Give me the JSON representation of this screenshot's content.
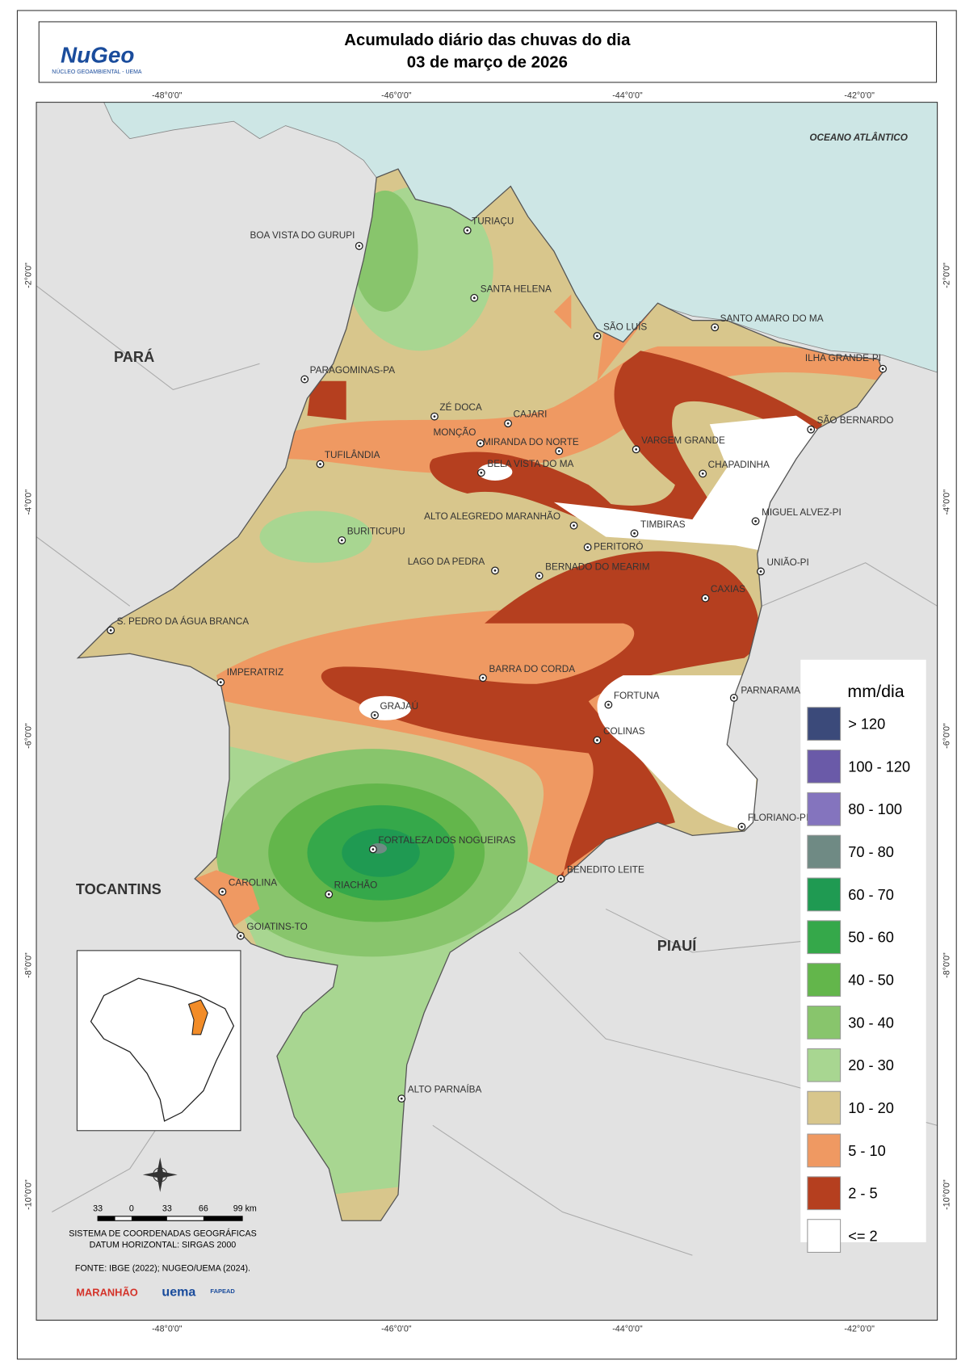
{
  "header": {
    "title": "Acumulado diário das chuvas do dia",
    "date": "03 de março de 2026",
    "logo": "NuGeo",
    "logo_subtitle": "NÚCLEO GEOAMBIENTAL - UEMA"
  },
  "coordinates": {
    "longitudes": [
      "-48°0'0\"",
      "-46°0'0\"",
      "-44°0'0\"",
      "-42°0'0\""
    ],
    "latitudes": [
      "-2°0'0\"",
      "-4°0'0\"",
      "-6°0'0\"",
      "-8°0'0\"",
      "-10°0'0\""
    ]
  },
  "regions": [
    "PARÁ",
    "TOCANTINS",
    "PIAUÍ"
  ],
  "ocean": "OCEANO ATLÂNTICO",
  "cities": [
    "BOA VISTA DO GURUPI",
    "TURIAÇU",
    "SANTA HELENA",
    "SÃO LUÍS",
    "SANTO AMARO DO MA",
    "ILHA GRANDE-PI",
    "PARAGOMINAS-PA",
    "ZÉ DOCA",
    "CAJARI",
    "MONÇÃO",
    "MIRANDA DO NORTE",
    "BELA VISTA DO MA",
    "VARGEM GRANDE",
    "SÃO BERNARDO",
    "CHAPADINHA",
    "TUFILÂNDIA",
    "ALTO ALEGREDO MARANHÃO",
    "TIMBIRAS",
    "MIGUEL ALVEZ-PI",
    "BURITICUPU",
    "PERITORÓ",
    "LAGO DA PEDRA",
    "BERNADO DO MEARIM",
    "UNIÃO-PI",
    "CAXIAS",
    "S. PEDRO DA ÁGUA BRANCA",
    "IMPERATRIZ",
    "BARRA DO CORDA",
    "GRAJAÚ",
    "FORTUNA",
    "PARNARAMA",
    "COLINAS",
    "FLORIANO-PI",
    "FORTALEZA DOS NOGUEIRAS",
    "BENEDITO LEITE",
    "CAROLINA",
    "RIACHÃO",
    "GOIATINS-TO",
    "ALTO PARNAÍBA"
  ],
  "legend": {
    "title": "mm/dia",
    "items": [
      {
        "label": "> 120",
        "color": "#3b4a7a"
      },
      {
        "label": "100 - 120",
        "color": "#6a5aa8"
      },
      {
        "label": "80 - 100",
        "color": "#8474be"
      },
      {
        "label": "70 - 80",
        "color": "#6f8a84"
      },
      {
        "label": "60 - 70",
        "color": "#1f9a52"
      },
      {
        "label": "50 - 60",
        "color": "#35a84a"
      },
      {
        "label": "40 - 50",
        "color": "#63b64b"
      },
      {
        "label": "30 - 40",
        "color": "#88c56c"
      },
      {
        "label": "20 - 30",
        "color": "#a8d691"
      },
      {
        "label": "10 - 20",
        "color": "#d8c68c"
      },
      {
        "label": "5 - 10",
        "color": "#ef9962"
      },
      {
        "label": "2 - 5",
        "color": "#b53f1f"
      },
      {
        "label": "<= 2",
        "color": "#ffffff"
      }
    ]
  },
  "scale_bar": {
    "labels": [
      "33",
      "0",
      "33",
      "66",
      "99 km"
    ]
  },
  "footer": {
    "crs": "SISTEMA DE COORDENADAS GEOGRÁFICAS",
    "datum": "DATUM HORIZONTAL: SIRGAS 2000",
    "source": "FONTE: IBGE (2022); NUGEO/UEMA (2024).",
    "logos": [
      "MARANHÃO",
      "uema",
      "FAPEAD"
    ]
  }
}
